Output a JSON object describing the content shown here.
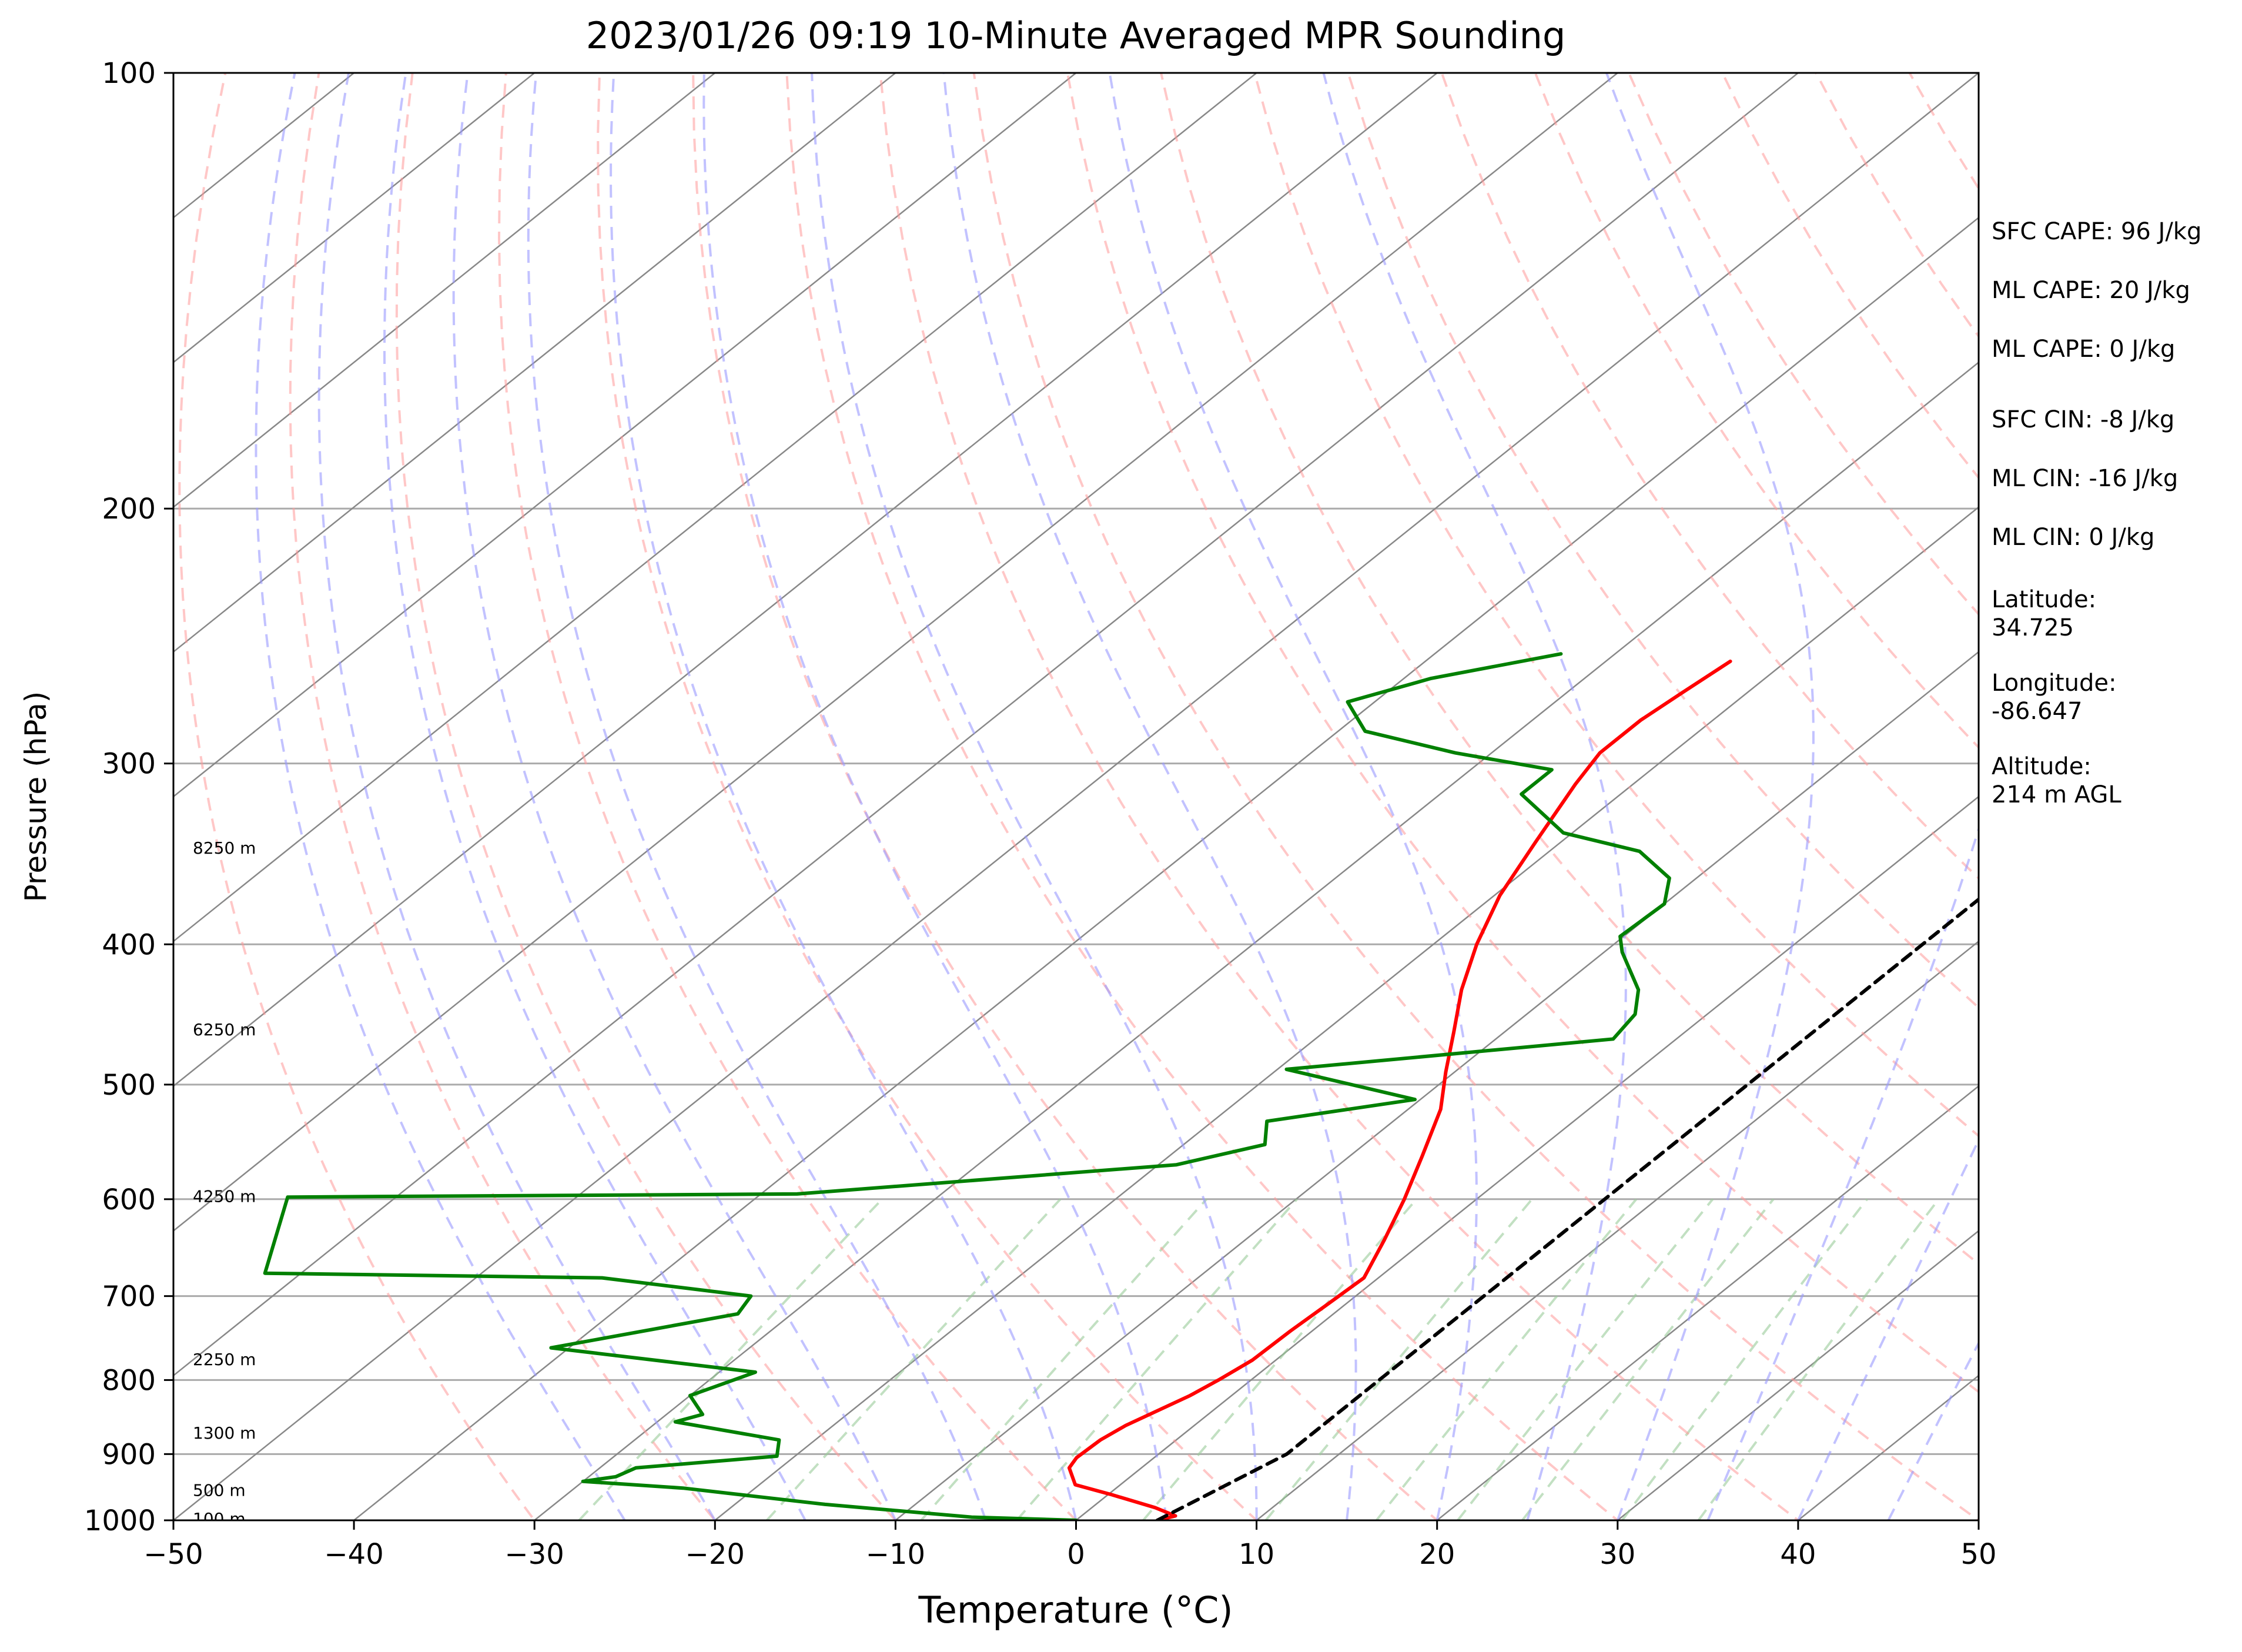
{
  "chart_data": {
    "type": "skew-t",
    "title": "2023/01/26 09:19 10-Minute Averaged MPR Sounding",
    "xlabel": "Temperature (°C)",
    "ylabel": "Pressure (hPa)",
    "xlim": [
      -50,
      50
    ],
    "ylim": [
      1000,
      100
    ],
    "y_scale": "log",
    "x_ticks": [
      "−50",
      "−40",
      "−30",
      "−20",
      "−10",
      "0",
      "10",
      "20",
      "30",
      "40",
      "50"
    ],
    "x_tick_values": [
      -50,
      -40,
      -30,
      -20,
      -10,
      0,
      10,
      20,
      30,
      40,
      50
    ],
    "y_ticks": [
      "100",
      "200",
      "300",
      "400",
      "500",
      "600",
      "700",
      "800",
      "900",
      "1000"
    ],
    "y_tick_values": [
      100,
      200,
      300,
      400,
      500,
      600,
      700,
      800,
      900,
      1000
    ],
    "grid": true,
    "height_labels": [
      {
        "text": "8250 m",
        "p": 343
      },
      {
        "text": "6250 m",
        "p": 458
      },
      {
        "text": "4250 m",
        "p": 597
      },
      {
        "text": "2250 m",
        "p": 774
      },
      {
        "text": "1300 m",
        "p": 870
      },
      {
        "text": "500 m",
        "p": 953
      },
      {
        "text": "100 m",
        "p": 997
      }
    ],
    "series": [
      {
        "role": "temperature",
        "color": "#ff0000",
        "points": [
          [
            1000,
            4.5
          ],
          [
            993,
            5.2
          ],
          [
            980,
            3.5
          ],
          [
            960,
            0.2
          ],
          [
            945,
            -2.5
          ],
          [
            920,
            -4.0
          ],
          [
            905,
            -4.3
          ],
          [
            880,
            -4.2
          ],
          [
            860,
            -3.8
          ],
          [
            820,
            -2.3
          ],
          [
            800,
            -1.8
          ],
          [
            775,
            -1.3
          ],
          [
            740,
            -1.2
          ],
          [
            710,
            -1.0
          ],
          [
            680,
            -0.8
          ],
          [
            640,
            -2.3
          ],
          [
            600,
            -4.0
          ],
          [
            560,
            -6.0
          ],
          [
            520,
            -8.2
          ],
          [
            490,
            -10.5
          ],
          [
            460,
            -12.8
          ],
          [
            430,
            -15.3
          ],
          [
            400,
            -17.6
          ],
          [
            370,
            -19.7
          ],
          [
            340,
            -21.4
          ],
          [
            310,
            -23.2
          ],
          [
            295,
            -24.0
          ],
          [
            280,
            -24.0
          ],
          [
            268,
            -23.6
          ],
          [
            255,
            -23.1
          ]
        ]
      },
      {
        "role": "dewpoint",
        "color": "#008000",
        "points": [
          [
            1000,
            0.0
          ],
          [
            995,
            -6.0
          ],
          [
            975,
            -15.0
          ],
          [
            950,
            -24.0
          ],
          [
            940,
            -30.0
          ],
          [
            933,
            -28.5
          ],
          [
            920,
            -28.0
          ],
          [
            903,
            -21.0
          ],
          [
            880,
            -22.0
          ],
          [
            855,
            -29.0
          ],
          [
            845,
            -28.0
          ],
          [
            820,
            -30.0
          ],
          [
            805,
            -29.0
          ],
          [
            790,
            -28.0
          ],
          [
            760,
            -41.0
          ],
          [
            720,
            -33.0
          ],
          [
            700,
            -33.5
          ],
          [
            680,
            -43.0
          ],
          [
            675,
            -62.0
          ],
          [
            598,
            -66.0
          ],
          [
            595,
            -38.0
          ],
          [
            568,
            -19.0
          ],
          [
            550,
            -15.5
          ],
          [
            530,
            -17.0
          ],
          [
            512,
            -10.3
          ],
          [
            488,
            -19.5
          ],
          [
            465,
            -3.5
          ],
          [
            447,
            -4.0
          ],
          [
            430,
            -5.5
          ],
          [
            405,
            -9.0
          ],
          [
            395,
            -10.2
          ],
          [
            375,
            -10.0
          ],
          [
            360,
            -11.5
          ],
          [
            345,
            -15.0
          ],
          [
            335,
            -20.5
          ],
          [
            315,
            -25.5
          ],
          [
            303,
            -25.5
          ],
          [
            295,
            -32.0
          ],
          [
            285,
            -38.5
          ],
          [
            272,
            -41.5
          ],
          [
            262,
            -38.5
          ],
          [
            252,
            -33.0
          ]
        ]
      },
      {
        "role": "parcel",
        "color": "#000000",
        "dashed": true,
        "points": [
          [
            1000,
            4.5
          ],
          [
            900,
            7.1
          ],
          [
            255,
            7.1
          ]
        ]
      }
    ]
  },
  "info": {
    "cape": [
      "SFC CAPE: 96 J/kg",
      "ML CAPE: 20 J/kg",
      "ML CAPE: 0 J/kg"
    ],
    "cin": [
      "SFC CIN: -8 J/kg",
      "ML CIN: -16 J/kg",
      "ML CIN: 0 J/kg"
    ],
    "latitude_label": "Latitude:",
    "latitude_value": "34.725",
    "longitude_label": "Longitude:",
    "longitude_value": "-86.647",
    "altitude_label": "Altitude:",
    "altitude_value": "214 m AGL"
  },
  "colors": {
    "temperature": "#ff0000",
    "dewpoint": "#008000",
    "parcel": "#000000",
    "dry_adiabat": "#ff9999",
    "moist_adiabat": "#9999ff",
    "mixing_ratio": "#99cc99",
    "isotherm": "#888888",
    "isobar": "#aaaaaa"
  }
}
